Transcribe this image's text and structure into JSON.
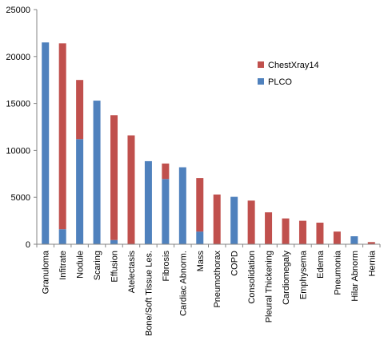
{
  "chart_data": {
    "type": "bar",
    "stacked": true,
    "categories": [
      "Granuloma",
      "Infitrate",
      "Nodule",
      "Scaring",
      "Effusion",
      "Atelectasis",
      "Bone/Soft Tissue Les.",
      "Fibrosis",
      "Cardiac Abnorm.",
      "Mass",
      "Pneumothorax",
      "COPD",
      "Consolidation",
      "Pleural Thickening",
      "Cardiomegaly",
      "Emphysema",
      "Edema",
      "Pneumonia",
      "Hilar Abnorm",
      "Hernia"
    ],
    "series": [
      {
        "name": "PLCO",
        "color": "#4f81bd",
        "values": [
          21500,
          1600,
          11200,
          15300,
          450,
          0,
          8850,
          6950,
          8200,
          1350,
          0,
          5050,
          0,
          0,
          0,
          0,
          0,
          0,
          850,
          0
        ]
      },
      {
        "name": "ChestXray14",
        "color": "#c0504d",
        "values": [
          0,
          19800,
          6300,
          0,
          13300,
          11600,
          0,
          1650,
          0,
          5700,
          5300,
          0,
          4650,
          3400,
          2750,
          2500,
          2300,
          1350,
          0,
          230
        ]
      }
    ],
    "legend_order": [
      "ChestXray14",
      "PLCO"
    ],
    "legend_position": "right",
    "ylim": [
      0,
      25000
    ],
    "yticks": [
      0,
      5000,
      10000,
      15000,
      20000,
      25000
    ],
    "grid": false,
    "title": "",
    "xlabel": "",
    "ylabel": ""
  }
}
